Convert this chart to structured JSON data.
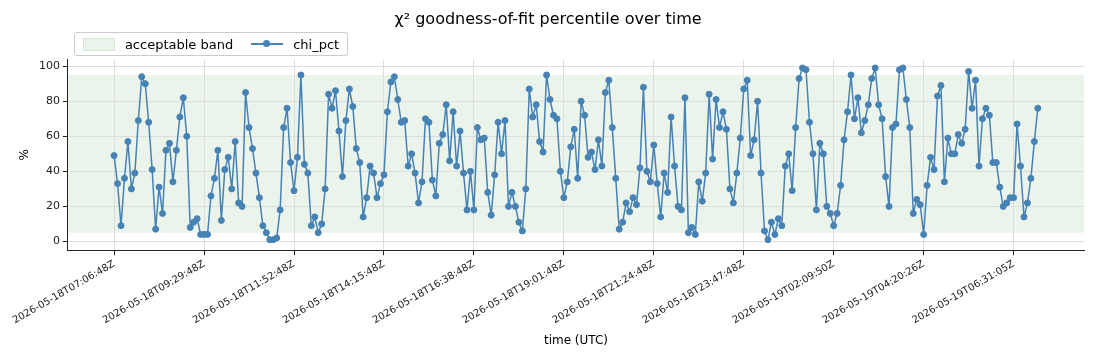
{
  "chart_data": {
    "type": "line",
    "title": "χ² goodness-of-fit percentile over time",
    "xlabel": "time (UTC)",
    "ylabel": "%",
    "categories": [
      "2026-05-18T07:06:48Z",
      null,
      null,
      null,
      null,
      null,
      null,
      null,
      null,
      null,
      null,
      null,
      null,
      null,
      null,
      null,
      null,
      null,
      null,
      null,
      null,
      null,
      null,
      null,
      null,
      null,
      "2026-05-18T09:29:48Z",
      null,
      null,
      null,
      null,
      null,
      null,
      null,
      null,
      null,
      null,
      null,
      null,
      null,
      null,
      null,
      null,
      null,
      null,
      null,
      null,
      null,
      null,
      null,
      null,
      null,
      "2026-05-18T11:52:48Z",
      null,
      null,
      null,
      null,
      null,
      null,
      null,
      null,
      null,
      null,
      null,
      null,
      null,
      null,
      null,
      null,
      null,
      null,
      null,
      null,
      null,
      null,
      null,
      null,
      null,
      "2026-05-18T14:15:48Z",
      null,
      null,
      null,
      null,
      null,
      null,
      null,
      null,
      null,
      null,
      null,
      null,
      null,
      null,
      null,
      null,
      null,
      null,
      null,
      null,
      null,
      null,
      null,
      null,
      null,
      "2026-05-18T16:38:48Z",
      null,
      null,
      null,
      null,
      null,
      null,
      null,
      null,
      null,
      null,
      null,
      null,
      null,
      null,
      null,
      null,
      null,
      null,
      null,
      null,
      null,
      null,
      null,
      null,
      null,
      "2026-05-18T19:01:48Z",
      null,
      null,
      null,
      null,
      null,
      null,
      null,
      null,
      null,
      null,
      null,
      null,
      null,
      null,
      null,
      null,
      null,
      null,
      null,
      null,
      null,
      null,
      null,
      null,
      null,
      "2026-05-18T21:24:48Z",
      null,
      null,
      null,
      null,
      null,
      null,
      null,
      null,
      null,
      null,
      null,
      null,
      null,
      null,
      null,
      null,
      null,
      null,
      null,
      null,
      null,
      null,
      null,
      null,
      null,
      "2026-05-18T23:47:48Z",
      null,
      null,
      null,
      null,
      null,
      null,
      null,
      null,
      null,
      null,
      null,
      null,
      null,
      null,
      null,
      null,
      null,
      null,
      null,
      null,
      null,
      null,
      null,
      null,
      null,
      "2026-05-19T02:09:50Z",
      null,
      null,
      null,
      null,
      null,
      null,
      null,
      null,
      null,
      null,
      null,
      null,
      null,
      null,
      null,
      null,
      null,
      null,
      null,
      null,
      null,
      null,
      null,
      null,
      null,
      "2026-05-19T04:20:26Z",
      null,
      null,
      null,
      null,
      null,
      null,
      null,
      null,
      null,
      null,
      null,
      null,
      null,
      null,
      null,
      null,
      null,
      null,
      null,
      null,
      null,
      null,
      null,
      null,
      null,
      "2026-05-19T06:31:05Z",
      null,
      null,
      null,
      null,
      null,
      null,
      null
    ],
    "series": [
      {
        "name": "chi_pct",
        "color": "#4682b4",
        "values": [
          49,
          33,
          9,
          36,
          57,
          30,
          39,
          69,
          94,
          90,
          68,
          41,
          7,
          31,
          16,
          52,
          56,
          34,
          52,
          71,
          82,
          60,
          8,
          11,
          13,
          4,
          4,
          4,
          26,
          36,
          52,
          12,
          41,
          48,
          30,
          57,
          22,
          20,
          85,
          65,
          53,
          39,
          25,
          9,
          5,
          1,
          1,
          2,
          18,
          65,
          76,
          45,
          29,
          48,
          95,
          44,
          39,
          9,
          14,
          5,
          10,
          30,
          84,
          76,
          86,
          63,
          37,
          69,
          87,
          77,
          53,
          45,
          14,
          25,
          43,
          39,
          25,
          33,
          38,
          74,
          91,
          94,
          81,
          68,
          69,
          43,
          50,
          39,
          22,
          34,
          70,
          68,
          35,
          26,
          56,
          61,
          78,
          46,
          74,
          43,
          63,
          39,
          18,
          40,
          18,
          65,
          58,
          59,
          28,
          15,
          38,
          68,
          50,
          69,
          20,
          28,
          20,
          11,
          6,
          30,
          87,
          71,
          78,
          57,
          51,
          95,
          81,
          72,
          70,
          40,
          25,
          34,
          54,
          64,
          36,
          80,
          72,
          48,
          51,
          41,
          58,
          43,
          85,
          92,
          65,
          36,
          7,
          11,
          22,
          17,
          25,
          21,
          42,
          88,
          40,
          34,
          55,
          33,
          14,
          39,
          28,
          71,
          43,
          20,
          18,
          82,
          5,
          8,
          4,
          34,
          23,
          39,
          84,
          47,
          81,
          65,
          74,
          64,
          30,
          22,
          39,
          59,
          87,
          92,
          49,
          58,
          80,
          39,
          6,
          1,
          11,
          4,
          13,
          9,
          43,
          50,
          29,
          65,
          93,
          99,
          98,
          68,
          50,
          18,
          56,
          50,
          20,
          16,
          9,
          16,
          32,
          58,
          74,
          95,
          70,
          82,
          62,
          69,
          78,
          93,
          99,
          78,
          70,
          37,
          20,
          65,
          67,
          98,
          99,
          81,
          65,
          16,
          24,
          21,
          4,
          32,
          48,
          41,
          83,
          89,
          34,
          59,
          50,
          50,
          61,
          56,
          64,
          97,
          76,
          92,
          43,
          70,
          76,
          72,
          45,
          45,
          31,
          20,
          22,
          25,
          25,
          67,
          43,
          14,
          22,
          36,
          57,
          76
        ]
      }
    ],
    "bands": [
      {
        "axis": "y",
        "from": 5,
        "to": 95,
        "label": "acceptable band",
        "color": "#eaf4ea"
      }
    ],
    "ylim": [
      -5,
      104
    ],
    "yticks": [
      0,
      20,
      40,
      60,
      80,
      100
    ],
    "grid": true,
    "legend": "top left",
    "marker": "circle",
    "line_style": "solid"
  }
}
